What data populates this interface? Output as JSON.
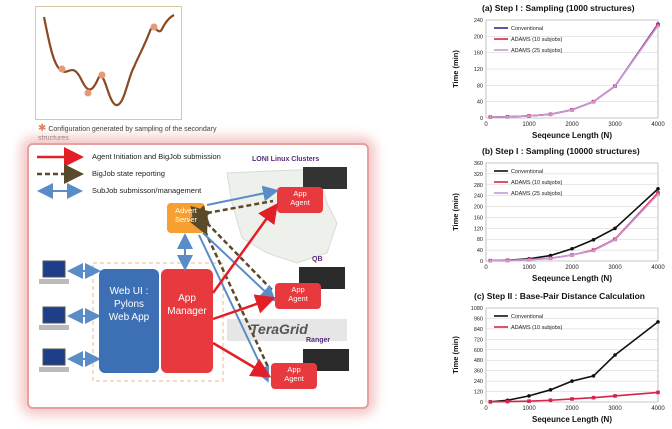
{
  "landscape": {
    "caption": "Configuration generated by sampling of the secondary structures"
  },
  "legend": {
    "item1": "Agent Initiation and BigJob submission",
    "item2": "BigJob state reporting",
    "item3": "SubJob submisson/management"
  },
  "architecture": {
    "web_ui_label": "Web UI :\nPylons\nWeb App",
    "app_manager_label": "App\nManager",
    "advert_server_label": "Advert\nServer",
    "app_agent_label": "App\nAgent",
    "loni_label": "LONI Linux Clusters",
    "qb_label": "QB",
    "ranger_label": "Ranger",
    "teragrid_label": "TeraGrid"
  },
  "chart_data": [
    {
      "type": "line",
      "title": "(a) Step I : Sampling (1000 structures)",
      "xlabel": "Seqeunce Length (N)",
      "ylabel": "Time (min)",
      "xlim": [
        0,
        4000
      ],
      "ylim": [
        0,
        240
      ],
      "xticks": [
        0,
        1000,
        2000,
        3000,
        4000
      ],
      "yticks": [
        0,
        40,
        80,
        120,
        160,
        200,
        240
      ],
      "series": [
        {
          "name": "Conventional",
          "color": "#3a2a8a",
          "marker": "circle",
          "x": [
            100,
            500,
            1000,
            1500,
            2000,
            2500,
            3000,
            4000
          ],
          "y": [
            2,
            3,
            5,
            9,
            20,
            40,
            78,
            230
          ]
        },
        {
          "name": "ADAMS (10 subjobs)",
          "color": "#d6244a",
          "marker": "square",
          "x": [
            100,
            500,
            1000,
            1500,
            2000,
            2500,
            3000,
            4000
          ],
          "y": [
            2,
            3,
            5,
            9,
            20,
            40,
            78,
            228
          ]
        },
        {
          "name": "ADAMS (25 subjobs)",
          "color": "#c59ad6",
          "marker": "triangle",
          "x": [
            100,
            500,
            1000,
            1500,
            2000,
            2500,
            3000,
            4000
          ],
          "y": [
            2,
            3,
            5,
            9,
            20,
            40,
            78,
            226
          ]
        }
      ]
    },
    {
      "type": "line",
      "title": "(b) Step I : Sampling (10000 structures)",
      "xlabel": "Seqeunce Length (N)",
      "ylabel": "Time (min)",
      "xlim": [
        0,
        4000
      ],
      "ylim": [
        0,
        360
      ],
      "xticks": [
        0,
        1000,
        2000,
        3000,
        4000
      ],
      "yticks": [
        0,
        40,
        80,
        120,
        160,
        200,
        240,
        280,
        320,
        360
      ],
      "series": [
        {
          "name": "Conventional",
          "color": "#111111",
          "marker": "circle",
          "x": [
            100,
            500,
            1000,
            1500,
            2000,
            2500,
            3000,
            4000
          ],
          "y": [
            1,
            3,
            8,
            20,
            45,
            78,
            120,
            265
          ]
        },
        {
          "name": "ADAMS (10 subjobs)",
          "color": "#d6244a",
          "marker": "square",
          "x": [
            100,
            500,
            1000,
            1500,
            2000,
            2500,
            3000,
            4000
          ],
          "y": [
            1,
            2,
            5,
            10,
            22,
            40,
            80,
            250
          ]
        },
        {
          "name": "ADAMS (25 subjobs)",
          "color": "#c59ad6",
          "marker": "triangle",
          "x": [
            100,
            500,
            1000,
            1500,
            2000,
            2500,
            3000,
            4000
          ],
          "y": [
            1,
            2,
            5,
            10,
            22,
            38,
            78,
            245
          ]
        }
      ]
    },
    {
      "type": "line",
      "title": "(c) Step II : Base-Pair Distance Calculation",
      "xlabel": "Seqeunce Length (N)",
      "ylabel": "Time (min)",
      "xlim": [
        0,
        4000
      ],
      "ylim": [
        0,
        1080
      ],
      "xticks": [
        0,
        1000,
        2000,
        3000,
        4000
      ],
      "yticks": [
        0,
        120,
        240,
        360,
        480,
        600,
        720,
        840,
        960,
        1080
      ],
      "series": [
        {
          "name": "Conventional",
          "color": "#111111",
          "marker": "circle",
          "x": [
            100,
            500,
            1000,
            1500,
            2000,
            2500,
            3000,
            4000
          ],
          "y": [
            2,
            20,
            70,
            140,
            240,
            300,
            540,
            920
          ]
        },
        {
          "name": "ADAMS (10 subjobs)",
          "color": "#d6244a",
          "marker": "square",
          "x": [
            100,
            500,
            1000,
            1500,
            2000,
            2500,
            3000,
            4000
          ],
          "y": [
            2,
            5,
            10,
            20,
            35,
            50,
            70,
            110
          ]
        }
      ]
    }
  ]
}
